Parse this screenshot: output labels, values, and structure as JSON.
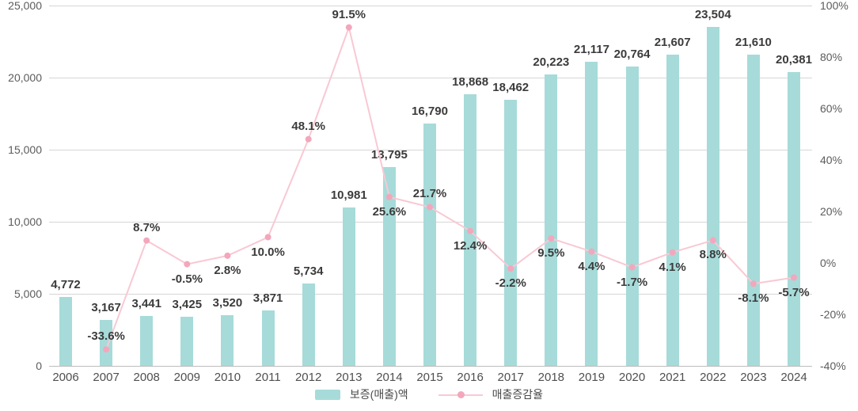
{
  "chart_data": {
    "type": "combo_bar_line",
    "title": "",
    "categories": [
      "2006",
      "2007",
      "2008",
      "2009",
      "2010",
      "2011",
      "2012",
      "2013",
      "2014",
      "2015",
      "2016",
      "2017",
      "2018",
      "2019",
      "2020",
      "2021",
      "2022",
      "2023",
      "2024"
    ],
    "series": [
      {
        "name": "보증(매출)액",
        "type": "bar",
        "axis": "left",
        "values": [
          4772,
          3167,
          3441,
          3425,
          3520,
          3871,
          5734,
          10981,
          13795,
          16790,
          18868,
          18462,
          20223,
          21117,
          20764,
          21607,
          23504,
          21610,
          20381
        ],
        "labels": [
          "4,772",
          "3,167",
          "3,441",
          "3,425",
          "3,520",
          "3,871",
          "5,734",
          "10,981",
          "13,795",
          "16,790",
          "18,868",
          "18,462",
          "20,223",
          "21,117",
          "20,764",
          "21,607",
          "23,504",
          "21,610",
          "20,381"
        ]
      },
      {
        "name": "매출증감율",
        "type": "line",
        "axis": "right",
        "values": [
          null,
          -33.6,
          8.7,
          -0.5,
          2.8,
          10.0,
          48.1,
          91.5,
          25.6,
          21.7,
          12.4,
          -2.2,
          9.5,
          4.4,
          -1.7,
          4.1,
          8.8,
          -8.1,
          -5.7
        ],
        "labels": [
          "",
          "-33.6%",
          "8.7%",
          "-0.5%",
          "2.8%",
          "10.0%",
          "48.1%",
          "91.5%",
          "25.6%",
          "21.7%",
          "12.4%",
          "-2.2%",
          "9.5%",
          "4.4%",
          "-1.7%",
          "4.1%",
          "8.8%",
          "-8.1%",
          "-5.7%"
        ],
        "label_side": [
          "",
          "above",
          "above",
          "below",
          "below",
          "below",
          "above",
          "above",
          "below",
          "above",
          "below",
          "below",
          "below",
          "below",
          "below",
          "below",
          "below",
          "below",
          "below"
        ]
      }
    ],
    "left_axis": {
      "min": 0,
      "max": 25000,
      "tick_labels": [
        "0",
        "5,000",
        "10,000",
        "15,000",
        "20,000",
        "25,000"
      ]
    },
    "right_axis": {
      "min": -40,
      "max": 100,
      "tick_labels": [
        "-40%",
        "-20%",
        "0%",
        "20%",
        "40%",
        "60%",
        "80%",
        "100%"
      ]
    },
    "grid": true,
    "legend_position": "bottom"
  },
  "colors": {
    "bar": "#a6dbd9",
    "line": "#f9c8d3",
    "marker": "#f3a7bc",
    "grid": "#d6d6d6",
    "baseline": "#bdbdbd"
  }
}
